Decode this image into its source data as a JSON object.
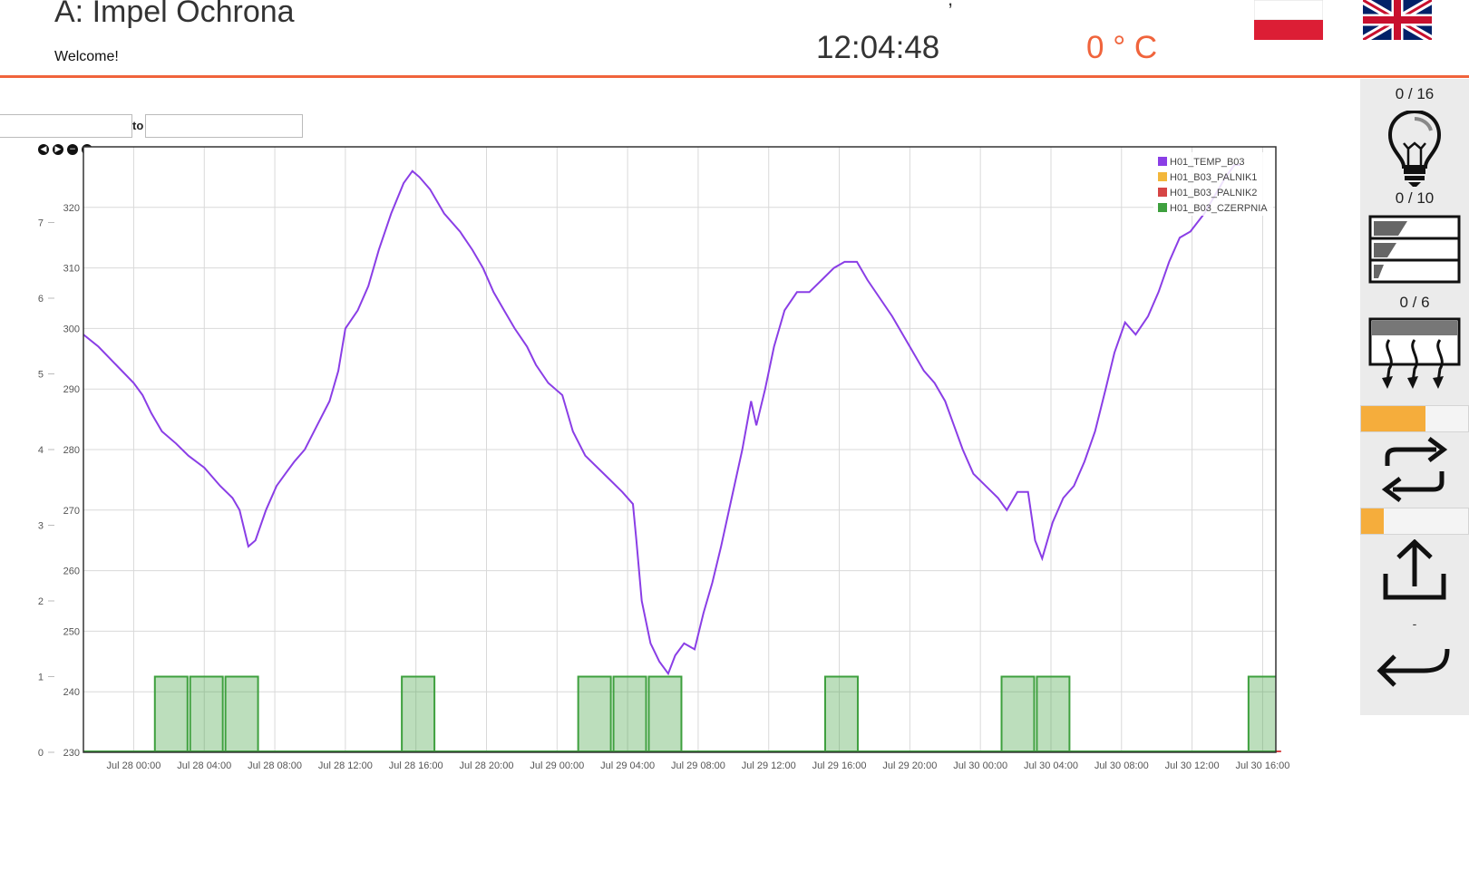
{
  "header": {
    "title": "A: Impel Ochrona",
    "welcome": "Welcome!",
    "date_fragment": ", ",
    "clock": "12:04:48",
    "temperature": "0 ° C"
  },
  "date_range": {
    "from_value": "",
    "to_label": "to",
    "to_value": ""
  },
  "nav_buttons": [
    "◀",
    "▶",
    "−",
    "+"
  ],
  "right_panel": {
    "lights_counter": "0 / 16",
    "blinds_counter": "0 / 10",
    "heating_counter": "0 / 6",
    "exchange_level": 0.6,
    "exhaust_level": 0.21,
    "status_dash": "-"
  },
  "chart_data": {
    "type": "line",
    "x_ticks": [
      "Jul 28 00:00",
      "Jul 28 04:00",
      "Jul 28 08:00",
      "Jul 28 12:00",
      "Jul 28 16:00",
      "Jul 28 20:00",
      "Jul 29 00:00",
      "Jul 29 04:00",
      "Jul 29 08:00",
      "Jul 29 12:00",
      "Jul 29 16:00",
      "Jul 29 20:00",
      "Jul 30 00:00",
      "Jul 30 04:00",
      "Jul 30 08:00",
      "Jul 30 12:00",
      "Jul 30 16:00"
    ],
    "x_range_hours": [
      -2.85,
      64.75
    ],
    "y_left_ticks": [
      "230",
      "240",
      "250",
      "260",
      "270",
      "280",
      "290",
      "300",
      "310",
      "320"
    ],
    "y_left_range": [
      230,
      330
    ],
    "y_right_ticks": [
      "0",
      "1",
      "2",
      "3",
      "4",
      "5",
      "6",
      "7"
    ],
    "y_right_range": [
      0,
      8
    ],
    "grid": true,
    "legend_position": "top-right",
    "series": [
      {
        "name": "H01_TEMP_B03",
        "color": "#8a3ee6",
        "axis": "left",
        "points": [
          [
            -2.85,
            299
          ],
          [
            -2.0,
            297
          ],
          [
            -1.0,
            294
          ],
          [
            0,
            291
          ],
          [
            0.5,
            289
          ],
          [
            1.0,
            286
          ],
          [
            1.6,
            283
          ],
          [
            2.4,
            281
          ],
          [
            3.1,
            279
          ],
          [
            4.0,
            277
          ],
          [
            4.9,
            274
          ],
          [
            5.6,
            272
          ],
          [
            6.0,
            270
          ],
          [
            6.5,
            264
          ],
          [
            6.9,
            265
          ],
          [
            7.5,
            270
          ],
          [
            8.1,
            274
          ],
          [
            8.6,
            276
          ],
          [
            9.1,
            278
          ],
          [
            9.7,
            280
          ],
          [
            10.4,
            284
          ],
          [
            11.1,
            288
          ],
          [
            11.6,
            293
          ],
          [
            12.0,
            300
          ],
          [
            12.7,
            303
          ],
          [
            13.3,
            307
          ],
          [
            13.9,
            313
          ],
          [
            14.6,
            319
          ],
          [
            15.3,
            324
          ],
          [
            15.8,
            326
          ],
          [
            16.2,
            325
          ],
          [
            16.8,
            323
          ],
          [
            17.6,
            319
          ],
          [
            18.5,
            316
          ],
          [
            19.2,
            313
          ],
          [
            19.8,
            310
          ],
          [
            20.4,
            306
          ],
          [
            21.0,
            303
          ],
          [
            21.6,
            300
          ],
          [
            22.3,
            297
          ],
          [
            22.8,
            294
          ],
          [
            23.5,
            291
          ],
          [
            24.3,
            289
          ],
          [
            24.9,
            283
          ],
          [
            25.6,
            279
          ],
          [
            26.3,
            277
          ],
          [
            27.0,
            275
          ],
          [
            27.7,
            273
          ],
          [
            28.3,
            271
          ],
          [
            28.5,
            265
          ],
          [
            28.8,
            255
          ],
          [
            29.3,
            248
          ],
          [
            29.8,
            245
          ],
          [
            30.3,
            243
          ],
          [
            30.7,
            246
          ],
          [
            31.2,
            248
          ],
          [
            31.8,
            247
          ],
          [
            32.3,
            253
          ],
          [
            32.8,
            258
          ],
          [
            33.3,
            264
          ],
          [
            33.9,
            272
          ],
          [
            34.5,
            280
          ],
          [
            35.0,
            288
          ],
          [
            35.3,
            284
          ],
          [
            35.8,
            290
          ],
          [
            36.3,
            297
          ],
          [
            36.9,
            303
          ],
          [
            37.6,
            306
          ],
          [
            38.3,
            306
          ],
          [
            39.0,
            308
          ],
          [
            39.7,
            310
          ],
          [
            40.3,
            311
          ],
          [
            41.0,
            311
          ],
          [
            41.6,
            308
          ],
          [
            42.3,
            305
          ],
          [
            43.0,
            302
          ],
          [
            43.6,
            299
          ],
          [
            44.2,
            296
          ],
          [
            44.8,
            293
          ],
          [
            45.4,
            291
          ],
          [
            46.0,
            288
          ],
          [
            46.5,
            284
          ],
          [
            47.0,
            280
          ],
          [
            47.6,
            276
          ],
          [
            48.3,
            274
          ],
          [
            49.0,
            272
          ],
          [
            49.5,
            270
          ],
          [
            50.1,
            273
          ],
          [
            50.7,
            273
          ],
          [
            51.1,
            265
          ],
          [
            51.5,
            262
          ],
          [
            52.1,
            268
          ],
          [
            52.7,
            272
          ],
          [
            53.3,
            274
          ],
          [
            53.9,
            278
          ],
          [
            54.5,
            283
          ],
          [
            55.1,
            290
          ],
          [
            55.6,
            296
          ],
          [
            56.2,
            301
          ],
          [
            56.8,
            299
          ],
          [
            57.5,
            302
          ],
          [
            58.1,
            306
          ],
          [
            58.7,
            311
          ],
          [
            59.3,
            315
          ],
          [
            59.9,
            316
          ],
          [
            60.7,
            319
          ],
          [
            61.3,
            322
          ],
          [
            61.9,
            325
          ],
          [
            62.4,
            327
          ],
          [
            62.75,
            327
          ]
        ]
      },
      {
        "name": "H01_B03_PALNIK1",
        "color": "#f3b73b",
        "axis": "right",
        "blocks": []
      },
      {
        "name": "H01_B03_PALNIK2",
        "color": "#d64545",
        "axis": "right",
        "blocks": []
      },
      {
        "name": "H01_B03_CZERPNIA",
        "color": "#3ea03e",
        "axis": "right",
        "value": 1,
        "blocks": [
          [
            1.2,
            3.05
          ],
          [
            3.2,
            5.05
          ],
          [
            5.2,
            7.05
          ],
          [
            15.2,
            17.05
          ],
          [
            25.2,
            27.05
          ],
          [
            27.2,
            29.05
          ],
          [
            29.2,
            31.05
          ],
          [
            39.2,
            41.05
          ],
          [
            49.2,
            51.05
          ],
          [
            51.2,
            53.05
          ],
          [
            63.2,
            65.05
          ]
        ]
      }
    ]
  }
}
